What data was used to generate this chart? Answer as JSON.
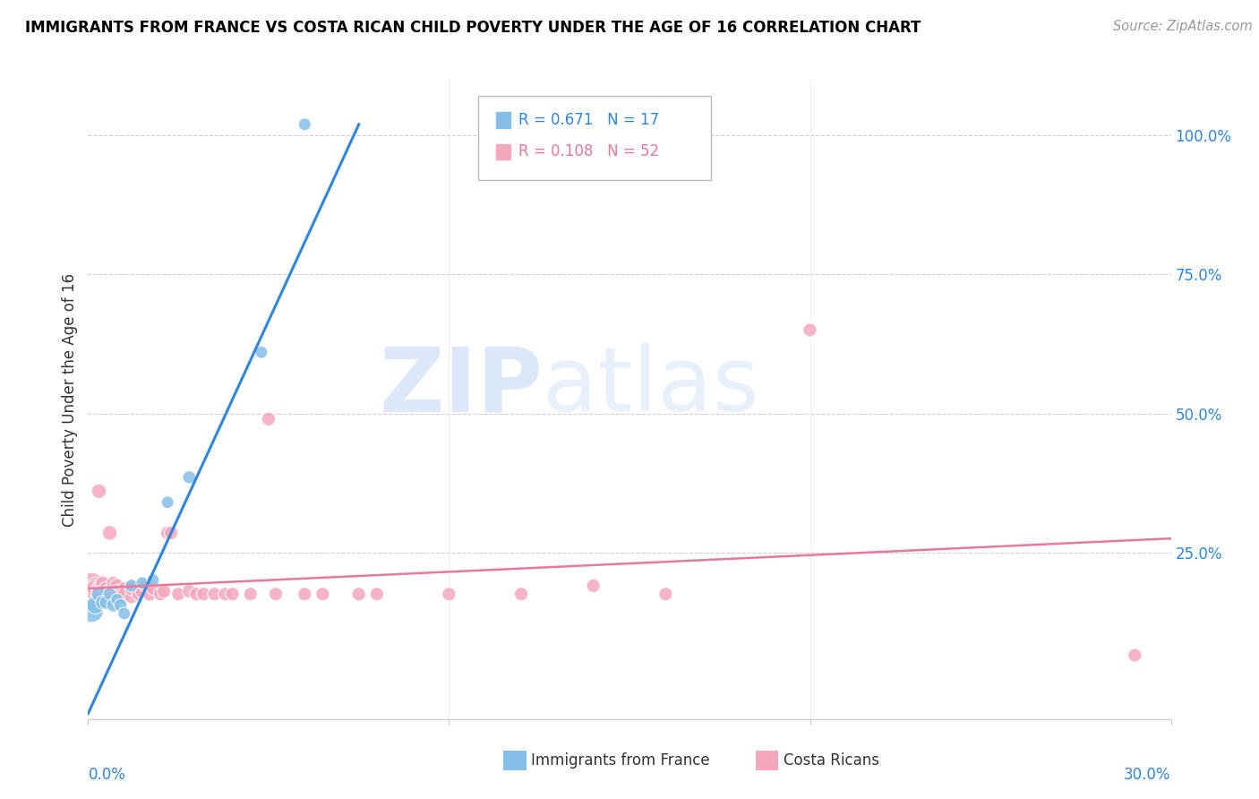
{
  "title": "IMMIGRANTS FROM FRANCE VS COSTA RICAN CHILD POVERTY UNDER THE AGE OF 16 CORRELATION CHART",
  "source": "Source: ZipAtlas.com",
  "ylabel": "Child Poverty Under the Age of 16",
  "ytick_labels": [
    "100.0%",
    "75.0%",
    "50.0%",
    "25.0%"
  ],
  "ytick_values": [
    1.0,
    0.75,
    0.5,
    0.25
  ],
  "xlim": [
    0.0,
    0.3
  ],
  "ylim": [
    -0.05,
    1.1
  ],
  "legend_blue_r": "0.671",
  "legend_blue_n": "17",
  "legend_pink_r": "0.108",
  "legend_pink_n": "52",
  "blue_color": "#85bfe8",
  "pink_color": "#f4a8bc",
  "blue_line_color": "#2e86de",
  "pink_line_color": "#e8799a",
  "watermark_zip": "ZIP",
  "watermark_atlas": "atlas",
  "blue_line_x0": 0.0,
  "blue_line_y0": -0.04,
  "blue_line_x1": 0.075,
  "blue_line_y1": 1.02,
  "pink_line_x0": 0.0,
  "pink_line_x1": 0.3,
  "pink_line_y0": 0.185,
  "pink_line_y1": 0.275,
  "blue_points": [
    [
      0.001,
      0.145
    ],
    [
      0.002,
      0.155
    ],
    [
      0.003,
      0.175
    ],
    [
      0.004,
      0.16
    ],
    [
      0.005,
      0.16
    ],
    [
      0.006,
      0.175
    ],
    [
      0.007,
      0.155
    ],
    [
      0.008,
      0.165
    ],
    [
      0.009,
      0.155
    ],
    [
      0.01,
      0.14
    ],
    [
      0.012,
      0.19
    ],
    [
      0.015,
      0.195
    ],
    [
      0.018,
      0.2
    ],
    [
      0.022,
      0.34
    ],
    [
      0.028,
      0.385
    ],
    [
      0.048,
      0.61
    ],
    [
      0.06,
      1.02
    ]
  ],
  "blue_sizes": [
    350,
    200,
    150,
    130,
    120,
    110,
    120,
    100,
    110,
    100,
    110,
    100,
    100,
    100,
    110,
    100,
    100
  ],
  "pink_points": [
    [
      0.001,
      0.195
    ],
    [
      0.001,
      0.18
    ],
    [
      0.002,
      0.19
    ],
    [
      0.002,
      0.175
    ],
    [
      0.002,
      0.185
    ],
    [
      0.003,
      0.185
    ],
    [
      0.003,
      0.36
    ],
    [
      0.003,
      0.18
    ],
    [
      0.004,
      0.19
    ],
    [
      0.004,
      0.195
    ],
    [
      0.005,
      0.175
    ],
    [
      0.005,
      0.185
    ],
    [
      0.006,
      0.18
    ],
    [
      0.006,
      0.285
    ],
    [
      0.007,
      0.185
    ],
    [
      0.007,
      0.195
    ],
    [
      0.008,
      0.19
    ],
    [
      0.008,
      0.18
    ],
    [
      0.009,
      0.175
    ],
    [
      0.01,
      0.185
    ],
    [
      0.01,
      0.175
    ],
    [
      0.012,
      0.17
    ],
    [
      0.012,
      0.185
    ],
    [
      0.014,
      0.175
    ],
    [
      0.015,
      0.18
    ],
    [
      0.016,
      0.19
    ],
    [
      0.017,
      0.175
    ],
    [
      0.018,
      0.185
    ],
    [
      0.02,
      0.175
    ],
    [
      0.021,
      0.18
    ],
    [
      0.022,
      0.285
    ],
    [
      0.023,
      0.285
    ],
    [
      0.025,
      0.175
    ],
    [
      0.028,
      0.18
    ],
    [
      0.03,
      0.175
    ],
    [
      0.032,
      0.175
    ],
    [
      0.035,
      0.175
    ],
    [
      0.038,
      0.175
    ],
    [
      0.04,
      0.175
    ],
    [
      0.045,
      0.175
    ],
    [
      0.05,
      0.49
    ],
    [
      0.052,
      0.175
    ],
    [
      0.06,
      0.175
    ],
    [
      0.065,
      0.175
    ],
    [
      0.075,
      0.175
    ],
    [
      0.08,
      0.175
    ],
    [
      0.1,
      0.175
    ],
    [
      0.12,
      0.175
    ],
    [
      0.14,
      0.19
    ],
    [
      0.16,
      0.175
    ],
    [
      0.2,
      0.65
    ],
    [
      0.29,
      0.065
    ]
  ],
  "pink_sizes": [
    280,
    220,
    190,
    170,
    200,
    160,
    140,
    160,
    150,
    130,
    140,
    130,
    150,
    140,
    130,
    120,
    130,
    120,
    130,
    120,
    130,
    120,
    130,
    120,
    130,
    120,
    130,
    120,
    120,
    120,
    120,
    120,
    120,
    120,
    120,
    120,
    120,
    120,
    120,
    120,
    120,
    120,
    120,
    120,
    120,
    120,
    120,
    120,
    120,
    120,
    120,
    120
  ]
}
